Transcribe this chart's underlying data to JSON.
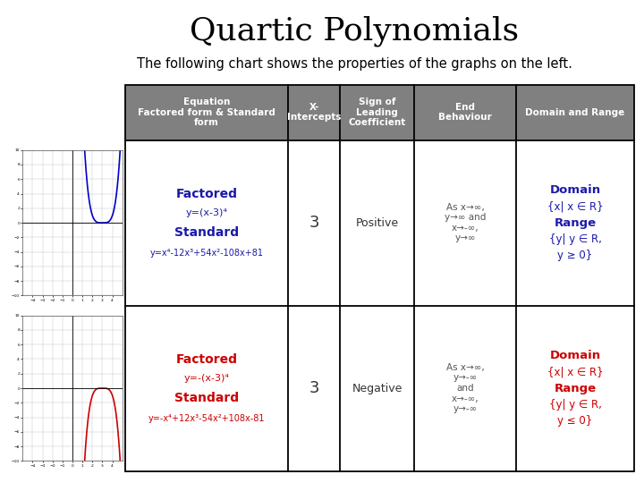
{
  "title": "Quartic Polynomials",
  "subtitle": "The following chart shows the properties of the graphs on the left.",
  "title_fontsize": 26,
  "subtitle_fontsize": 10.5,
  "background_color": "#ffffff",
  "header_bg": "#808080",
  "header_text_color": "#ffffff",
  "header_labels": [
    "Equation\nFactored form & Standard\nform",
    "X-\nIntercepts",
    "Sign of\nLeading\nCoefficient",
    "End\nBehaviour",
    "Domain and Range"
  ],
  "row1": {
    "equation_bold": "Factored",
    "equation_line2": "y=(x-3)⁴",
    "equation_bold2": "Standard",
    "equation_line4": "y=x⁴-12x³+54x²-108x+81",
    "x_intercepts": "3",
    "sign": "Positive",
    "end_behaviour": "As x→∞,\ny→∞ and\nx→-∞,\ny→∞",
    "domain_range_lines": [
      "Domain",
      "{x| x ∈ R}",
      "Range",
      "{y| y ∈ R,",
      "y ≥ 0}"
    ],
    "color": "#1a1aaa"
  },
  "row2": {
    "equation_bold": "Factored",
    "equation_line2": "y=-(x-3)⁴",
    "equation_bold2": "Standard",
    "equation_line4": "y=-x⁴+12x³-54x²+108x-81",
    "x_intercepts": "3",
    "sign": "Negative",
    "end_behaviour": "As x→∞,\ny→-∞\nand\nx→-∞,\ny→-∞",
    "domain_range_lines": [
      "Domain",
      "{x| x ∈ R}",
      "Range",
      "{y| y ∈ R,",
      "y ≤ 0}"
    ],
    "color": "#cc0000"
  },
  "graph1_color": "#0000cc",
  "graph2_color": "#cc0000"
}
